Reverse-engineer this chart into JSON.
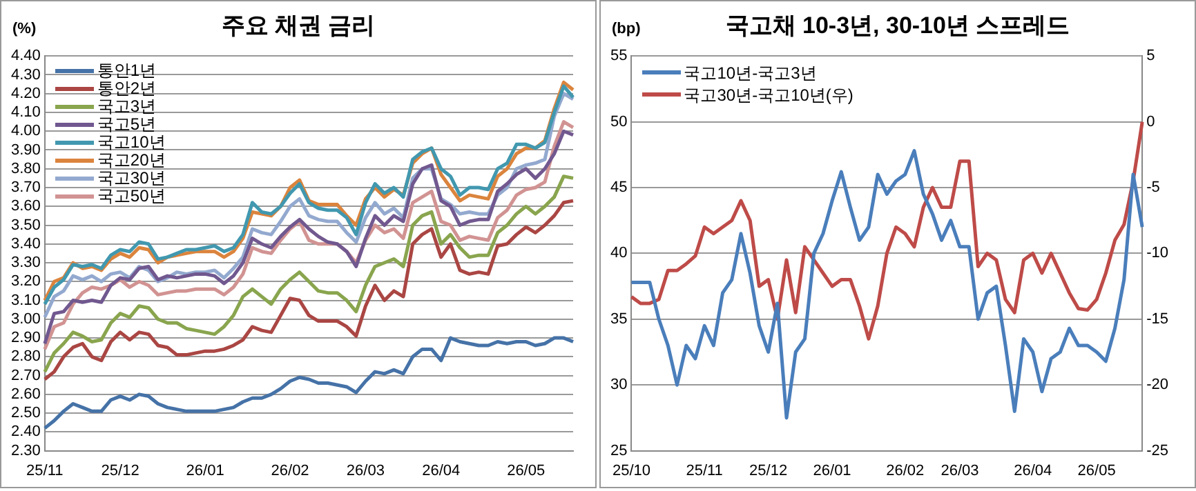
{
  "chart_data": [
    {
      "type": "line",
      "title": "주요 채권 금리",
      "ylabel": "(%)",
      "grid": "y",
      "legend": "top left",
      "marker": "none",
      "categories": [
        "25/11",
        null,
        null,
        null,
        null,
        null,
        null,
        null,
        "25/12",
        null,
        null,
        null,
        null,
        null,
        null,
        null,
        null,
        "26/01",
        null,
        null,
        null,
        null,
        null,
        null,
        null,
        null,
        "26/02",
        null,
        null,
        null,
        null,
        null,
        null,
        null,
        "26/03",
        null,
        null,
        null,
        null,
        null,
        null,
        null,
        "26/04",
        null,
        null,
        null,
        null,
        null,
        null,
        null,
        null,
        "26/05",
        null,
        null,
        null,
        null,
        null
      ],
      "ylim": [
        2.3,
        4.4
      ],
      "yticks": [
        {
          "value": 2.3,
          "label": "2.30"
        },
        {
          "value": 2.4,
          "label": "2.40"
        },
        {
          "value": 2.5,
          "label": "2.50"
        },
        {
          "value": 2.6,
          "label": "2.60"
        },
        {
          "value": 2.7,
          "label": "2.70"
        },
        {
          "value": 2.8,
          "label": "2.80"
        },
        {
          "value": 2.9,
          "label": "2.90"
        },
        {
          "value": 3.0,
          "label": "3.00"
        },
        {
          "value": 3.1,
          "label": "3.10"
        },
        {
          "value": 3.2,
          "label": "3.20"
        },
        {
          "value": 3.3,
          "label": "3.30"
        },
        {
          "value": 3.4,
          "label": "3.40"
        },
        {
          "value": 3.5,
          "label": "3.50"
        },
        {
          "value": 3.6,
          "label": "3.60"
        },
        {
          "value": 3.7,
          "label": "3.70"
        },
        {
          "value": 3.8,
          "label": "3.80"
        },
        {
          "value": 3.9,
          "label": "3.90"
        },
        {
          "value": 4.0,
          "label": "4.00"
        },
        {
          "value": 4.1,
          "label": "4.10"
        },
        {
          "value": 4.2,
          "label": "4.20"
        },
        {
          "value": 4.3,
          "label": "4.30"
        },
        {
          "value": 4.4,
          "label": "4.40"
        }
      ],
      "series": [
        {
          "name": "통안1년",
          "color": "#4572a7",
          "values": [
            2.42,
            2.46,
            2.51,
            2.55,
            2.53,
            2.51,
            2.51,
            2.57,
            2.59,
            2.57,
            2.6,
            2.59,
            2.55,
            2.53,
            2.52,
            2.51,
            2.51,
            2.51,
            2.51,
            2.52,
            2.53,
            2.56,
            2.58,
            2.58,
            2.6,
            2.63,
            2.67,
            2.69,
            2.68,
            2.66,
            2.66,
            2.65,
            2.64,
            2.61,
            2.67,
            2.72,
            2.71,
            2.73,
            2.71,
            2.8,
            2.84,
            2.84,
            2.78,
            2.9,
            2.88,
            2.87,
            2.86,
            2.86,
            2.88,
            2.87,
            2.88,
            2.88,
            2.86,
            2.87,
            2.9,
            2.9,
            2.88
          ]
        },
        {
          "name": "통안2년",
          "color": "#aa4643",
          "values": [
            2.68,
            2.72,
            2.8,
            2.85,
            2.87,
            2.8,
            2.78,
            2.88,
            2.93,
            2.89,
            2.93,
            2.92,
            2.86,
            2.85,
            2.81,
            2.81,
            2.82,
            2.83,
            2.83,
            2.84,
            2.86,
            2.89,
            2.96,
            2.94,
            2.93,
            3.02,
            3.11,
            3.1,
            3.02,
            2.99,
            2.99,
            2.99,
            2.96,
            2.91,
            3.07,
            3.18,
            3.1,
            3.15,
            3.12,
            3.4,
            3.45,
            3.48,
            3.33,
            3.4,
            3.26,
            3.24,
            3.25,
            3.24,
            3.39,
            3.4,
            3.45,
            3.49,
            3.46,
            3.5,
            3.55,
            3.62,
            3.63
          ]
        },
        {
          "name": "국고3년",
          "color": "#89a54e",
          "values": [
            2.72,
            2.82,
            2.87,
            2.93,
            2.91,
            2.88,
            2.89,
            2.98,
            3.03,
            3.01,
            3.07,
            3.06,
            3.0,
            2.98,
            2.98,
            2.95,
            2.94,
            2.93,
            2.92,
            2.96,
            3.02,
            3.12,
            3.16,
            3.12,
            3.08,
            3.16,
            3.21,
            3.25,
            3.2,
            3.15,
            3.14,
            3.14,
            3.1,
            3.04,
            3.18,
            3.28,
            3.3,
            3.32,
            3.28,
            3.5,
            3.55,
            3.57,
            3.4,
            3.45,
            3.38,
            3.33,
            3.34,
            3.34,
            3.46,
            3.5,
            3.56,
            3.6,
            3.56,
            3.6,
            3.65,
            3.76,
            3.75
          ]
        },
        {
          "name": "국고5년",
          "color": "#71588f",
          "values": [
            2.87,
            3.03,
            3.04,
            3.1,
            3.09,
            3.1,
            3.09,
            3.18,
            3.22,
            3.21,
            3.27,
            3.28,
            3.21,
            3.23,
            3.22,
            3.23,
            3.24,
            3.24,
            3.23,
            3.19,
            3.23,
            3.3,
            3.43,
            3.4,
            3.38,
            3.44,
            3.49,
            3.53,
            3.48,
            3.44,
            3.41,
            3.4,
            3.36,
            3.28,
            3.43,
            3.55,
            3.5,
            3.55,
            3.52,
            3.72,
            3.8,
            3.82,
            3.63,
            3.6,
            3.5,
            3.52,
            3.53,
            3.53,
            3.68,
            3.72,
            3.77,
            3.8,
            3.75,
            3.8,
            3.88,
            4.0,
            3.98
          ]
        },
        {
          "name": "국고10년",
          "color": "#4198af",
          "values": [
            3.08,
            3.17,
            3.21,
            3.29,
            3.28,
            3.29,
            3.27,
            3.34,
            3.37,
            3.36,
            3.41,
            3.4,
            3.32,
            3.33,
            3.35,
            3.37,
            3.37,
            3.38,
            3.39,
            3.36,
            3.38,
            3.45,
            3.62,
            3.57,
            3.56,
            3.6,
            3.67,
            3.72,
            3.62,
            3.59,
            3.58,
            3.58,
            3.54,
            3.45,
            3.62,
            3.72,
            3.67,
            3.7,
            3.65,
            3.85,
            3.89,
            3.91,
            3.8,
            3.76,
            3.66,
            3.7,
            3.7,
            3.69,
            3.8,
            3.83,
            3.93,
            3.93,
            3.91,
            3.94,
            4.1,
            4.24,
            4.18
          ]
        },
        {
          "name": "국고20년",
          "color": "#db843d",
          "values": [
            3.1,
            3.2,
            3.22,
            3.3,
            3.27,
            3.28,
            3.26,
            3.32,
            3.35,
            3.33,
            3.38,
            3.37,
            3.3,
            3.33,
            3.34,
            3.35,
            3.36,
            3.36,
            3.36,
            3.33,
            3.36,
            3.43,
            3.57,
            3.56,
            3.55,
            3.6,
            3.7,
            3.74,
            3.63,
            3.61,
            3.61,
            3.61,
            3.55,
            3.5,
            3.64,
            3.7,
            3.65,
            3.69,
            3.66,
            3.83,
            3.88,
            3.91,
            3.77,
            3.7,
            3.63,
            3.66,
            3.65,
            3.64,
            3.76,
            3.8,
            3.88,
            3.91,
            3.91,
            3.95,
            4.12,
            4.26,
            4.22
          ]
        },
        {
          "name": "국고30년",
          "color": "#93a9cf",
          "values": [
            3.01,
            3.12,
            3.15,
            3.23,
            3.21,
            3.23,
            3.2,
            3.24,
            3.25,
            3.22,
            3.28,
            3.26,
            3.2,
            3.22,
            3.25,
            3.24,
            3.25,
            3.25,
            3.26,
            3.22,
            3.27,
            3.33,
            3.48,
            3.46,
            3.45,
            3.52,
            3.6,
            3.64,
            3.55,
            3.53,
            3.52,
            3.52,
            3.46,
            3.41,
            3.54,
            3.62,
            3.56,
            3.59,
            3.54,
            3.75,
            3.8,
            3.8,
            3.64,
            3.61,
            3.56,
            3.57,
            3.56,
            3.56,
            3.66,
            3.7,
            3.8,
            3.82,
            3.83,
            3.85,
            4.08,
            4.2,
            4.17
          ]
        },
        {
          "name": "국고50년",
          "color": "#d19392",
          "values": [
            2.84,
            2.96,
            2.98,
            3.08,
            3.14,
            3.17,
            3.16,
            3.18,
            3.21,
            3.17,
            3.2,
            3.18,
            3.13,
            3.14,
            3.15,
            3.15,
            3.16,
            3.16,
            3.16,
            3.13,
            3.17,
            3.24,
            3.38,
            3.36,
            3.35,
            3.42,
            3.48,
            3.52,
            3.42,
            3.4,
            3.4,
            3.4,
            3.36,
            3.3,
            3.42,
            3.5,
            3.46,
            3.48,
            3.43,
            3.62,
            3.65,
            3.68,
            3.52,
            3.5,
            3.42,
            3.44,
            3.43,
            3.42,
            3.54,
            3.58,
            3.66,
            3.69,
            3.7,
            3.73,
            3.92,
            4.05,
            4.02
          ]
        }
      ]
    },
    {
      "type": "line",
      "title": "국고채 10-3년, 30-10년 스프레드",
      "ylabel": "(bp)",
      "grid": "y",
      "legend": "top left",
      "marker": "none",
      "categories": [
        "25/10",
        null,
        null,
        null,
        null,
        null,
        null,
        null,
        "25/11",
        null,
        null,
        null,
        null,
        null,
        null,
        "25/12",
        null,
        null,
        null,
        null,
        null,
        null,
        "26/01",
        null,
        null,
        null,
        null,
        null,
        null,
        null,
        "26/02",
        null,
        null,
        null,
        null,
        null,
        "26/03",
        null,
        null,
        null,
        null,
        null,
        null,
        null,
        "26/04",
        null,
        null,
        null,
        null,
        null,
        null,
        "26/05",
        null,
        null,
        null,
        null,
        null
      ],
      "ylim": [
        25,
        55
      ],
      "yticks": [
        25,
        30,
        35,
        40,
        45,
        50,
        55
      ],
      "y2lim": [
        -25,
        5
      ],
      "y2ticks": [
        -25,
        -20,
        -15,
        -10,
        -5,
        0,
        5
      ],
      "series": [
        {
          "name": "국고10년-국고3년",
          "color": "#4a7ebb",
          "values": [
            37.8,
            37.8,
            37.8,
            35,
            33,
            30,
            33,
            32,
            34.5,
            33,
            37,
            38,
            41.5,
            38.5,
            34.5,
            32.5,
            36.2,
            27.5,
            32.5,
            33.5,
            40,
            41.5,
            44,
            46.2,
            43.5,
            41,
            42,
            46,
            44.5,
            45.5,
            46,
            47.8,
            44.5,
            43,
            41,
            42.5,
            40.5,
            40.5,
            35,
            37,
            37.5,
            33,
            28,
            33.5,
            32.5,
            29.5,
            32,
            32.5,
            34.3,
            33,
            33,
            32.5,
            31.8,
            34.3,
            38,
            46,
            42
          ]
        },
        {
          "name": "국고30년-국고10년(우)",
          "color": "#be4b48",
          "axis": "y2",
          "values": [
            -13.3,
            -13.8,
            -13.8,
            -13.5,
            -11.3,
            -11.3,
            -10.8,
            -10.2,
            -8,
            -8.5,
            -8,
            -7.5,
            -6,
            -7.5,
            -12.5,
            -12,
            -15,
            -10.5,
            -14.5,
            -9.5,
            -10.5,
            -11.5,
            -12.5,
            -12,
            -12,
            -14,
            -16.5,
            -14,
            -10,
            -8,
            -8.5,
            -9.5,
            -6.5,
            -5,
            -6.5,
            -6.5,
            -3,
            -3,
            -11,
            -10,
            -10.5,
            -13.5,
            -14.5,
            -10.5,
            -10,
            -11.5,
            -10,
            -11.5,
            -13,
            -14.2,
            -14.3,
            -13.5,
            -11.5,
            -9,
            -7.8,
            -4.5,
            0
          ]
        }
      ]
    }
  ]
}
